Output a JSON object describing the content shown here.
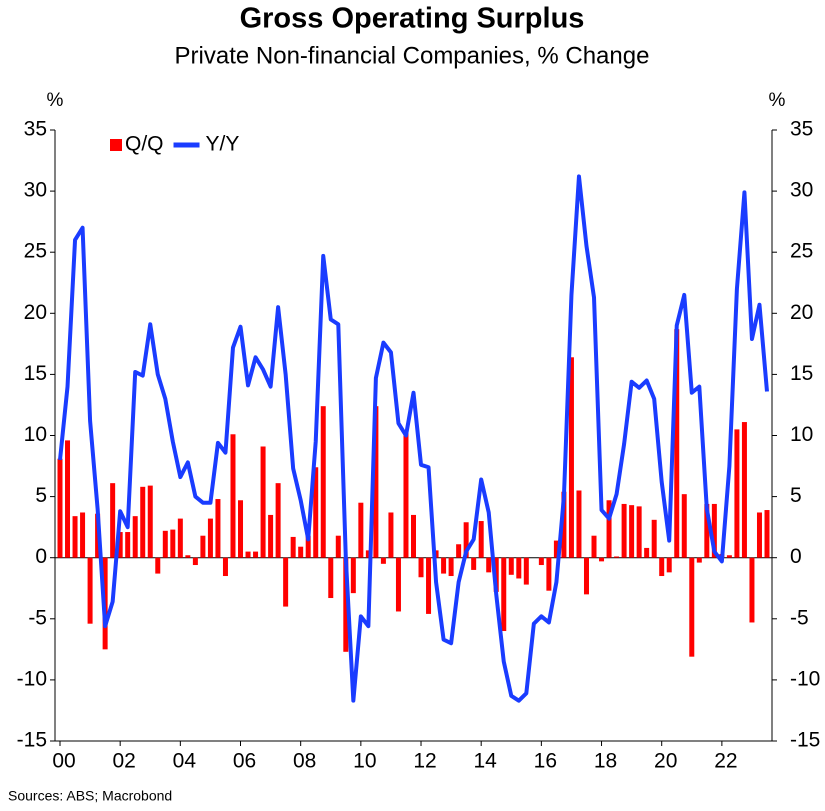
{
  "chart_data": {
    "type": "bar_line",
    "title": "Gross Operating Surplus",
    "subtitle": "Private Non-financial Companies, % Change",
    "ylabel": "%",
    "y2label": "%",
    "source": "Sources: ABS; Macrobond",
    "categories": [
      "00",
      null,
      null,
      null,
      null,
      null,
      null,
      null,
      "02",
      null,
      null,
      null,
      null,
      null,
      null,
      null,
      "04",
      null,
      null,
      null,
      null,
      null,
      null,
      null,
      "06",
      null,
      null,
      null,
      null,
      null,
      null,
      null,
      "08",
      null,
      null,
      null,
      null,
      null,
      null,
      null,
      "10",
      null,
      null,
      null,
      null,
      null,
      null,
      null,
      "12",
      null,
      null,
      null,
      null,
      null,
      null,
      null,
      "14",
      null,
      null,
      null,
      null,
      null,
      null,
      null,
      "16",
      null,
      null,
      null,
      null,
      null,
      null,
      null,
      "18",
      null,
      null,
      null,
      null,
      null,
      null,
      null,
      "20",
      null,
      null,
      null,
      null,
      null,
      null,
      null,
      "22",
      null,
      null,
      null,
      null,
      null,
      null
    ],
    "series": [
      {
        "name": "Q/Q",
        "color": "#ff0000",
        "kind": "bar",
        "values": [
          8.1,
          9.6,
          3.4,
          3.7,
          -5.4,
          3.6,
          -7.5,
          6.1,
          2.1,
          2.1,
          3.4,
          5.8,
          5.9,
          -1.3,
          2.2,
          2.3,
          3.2,
          0.2,
          -0.6,
          1.8,
          3.2,
          4.8,
          -1.5,
          10.1,
          4.7,
          0.5,
          0.5,
          9.1,
          3.5,
          6.1,
          -4.0,
          1.7,
          0.9,
          1.8,
          7.4,
          12.4,
          -3.3,
          1.8,
          -7.7,
          -2.9,
          4.5,
          0.6,
          12.4,
          -0.5,
          3.7,
          -4.4,
          10.4,
          3.5,
          -1.6,
          -4.6,
          0.6,
          -1.3,
          -1.5,
          1.1,
          2.9,
          -1.0,
          3.0,
          -1.2,
          -2.8,
          -6.0,
          -1.4,
          -1.7,
          -2.2,
          0.0,
          -0.6,
          -2.7,
          1.4,
          5.4,
          16.4,
          5.5,
          -3.0,
          1.8,
          -0.3,
          4.7,
          0.1,
          4.4,
          4.3,
          4.2,
          0.8,
          3.1,
          -1.5,
          -1.2,
          18.7,
          5.2,
          -8.1,
          -0.4,
          4.4,
          4.4,
          0.3,
          0.2,
          10.5,
          11.1,
          -5.3,
          3.7,
          3.9
        ]
      },
      {
        "name": "Y/Y",
        "color": "#1a3cff",
        "kind": "line",
        "values": [
          8,
          14,
          26,
          27,
          11.2,
          4,
          -5.6,
          -3.6,
          3.8,
          2.5,
          15.2,
          14.9,
          19.1,
          15,
          13,
          9.5,
          6.6,
          7.8,
          5,
          4.5,
          4.5,
          9.4,
          8.6,
          17.2,
          18.9,
          14.1,
          16.4,
          15.4,
          14,
          20.5,
          15,
          7.3,
          4.7,
          1.5,
          9.5,
          24.7,
          19.5,
          19.1,
          0,
          -11.7,
          -4.8,
          -5.6,
          14.7,
          17.6,
          16.8,
          11,
          10,
          13.5,
          7.6,
          7.4,
          -2,
          -6.7,
          -7,
          -2,
          0.5,
          1.5,
          6.4,
          3.7,
          -3,
          -8.5,
          -11.3,
          -11.7,
          -11.1,
          -5.4,
          -4.8,
          -5.3,
          -2,
          5,
          21.5,
          31.2,
          25.5,
          21.3,
          3.9,
          3.2,
          5.2,
          9.3,
          14.4,
          13.9,
          14.5,
          13,
          6.2,
          1.4,
          19,
          21.5,
          13.5,
          14,
          4,
          0.5,
          -0.3,
          7.5,
          22,
          29.9,
          17.9,
          20.7,
          13.6
        ]
      }
    ],
    "ylim": [
      -15,
      35
    ],
    "yticks": [
      -15,
      -10,
      -5,
      0,
      5,
      10,
      15,
      20,
      25,
      30,
      35
    ],
    "y2lim": [
      -15,
      35
    ],
    "y2ticks": [
      -15,
      -10,
      -5,
      0,
      5,
      10,
      15,
      20,
      25,
      30,
      35
    ],
    "legend": "upper left"
  }
}
